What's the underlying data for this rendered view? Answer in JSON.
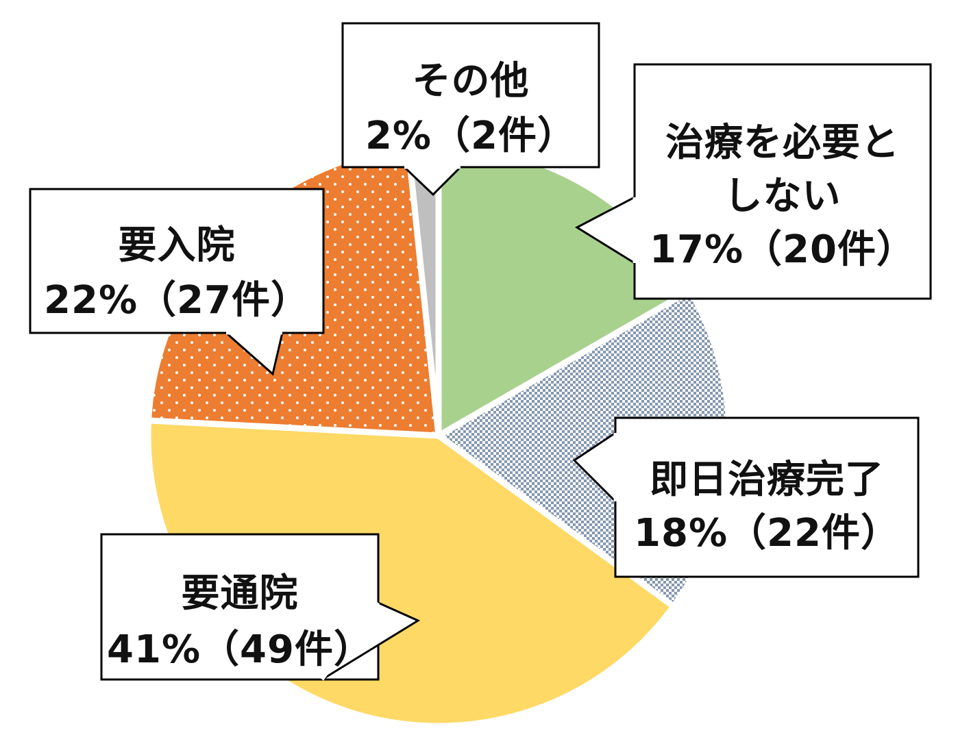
{
  "chart_data": {
    "type": "pie",
    "start_angle_deg": 90,
    "direction": "clockwise",
    "slices": [
      {
        "label_lines": [
          "治療を必要と",
          "しない"
        ],
        "value_line": "17%（20件）",
        "count": 20,
        "percent": 17,
        "color": "#a9d18e",
        "pattern": "solid"
      },
      {
        "label_lines": [
          "即日治療完了"
        ],
        "value_line": "18%（22件）",
        "count": 22,
        "percent": 18,
        "color": "#8497b0",
        "pattern": "checker"
      },
      {
        "label_lines": [
          "要通院"
        ],
        "value_line": "41%（49件）",
        "count": 49,
        "percent": 41,
        "color": "#ffd966",
        "pattern": "solid"
      },
      {
        "label_lines": [
          "要入院"
        ],
        "value_line": "22%（27件）",
        "count": 27,
        "percent": 22,
        "color": "#ed7d31",
        "pattern": "dots"
      },
      {
        "label_lines": [
          "その他"
        ],
        "value_line": "2%（2件）",
        "count": 2,
        "percent": 2,
        "color": "#bfbfbf",
        "pattern": "solid"
      }
    ]
  }
}
